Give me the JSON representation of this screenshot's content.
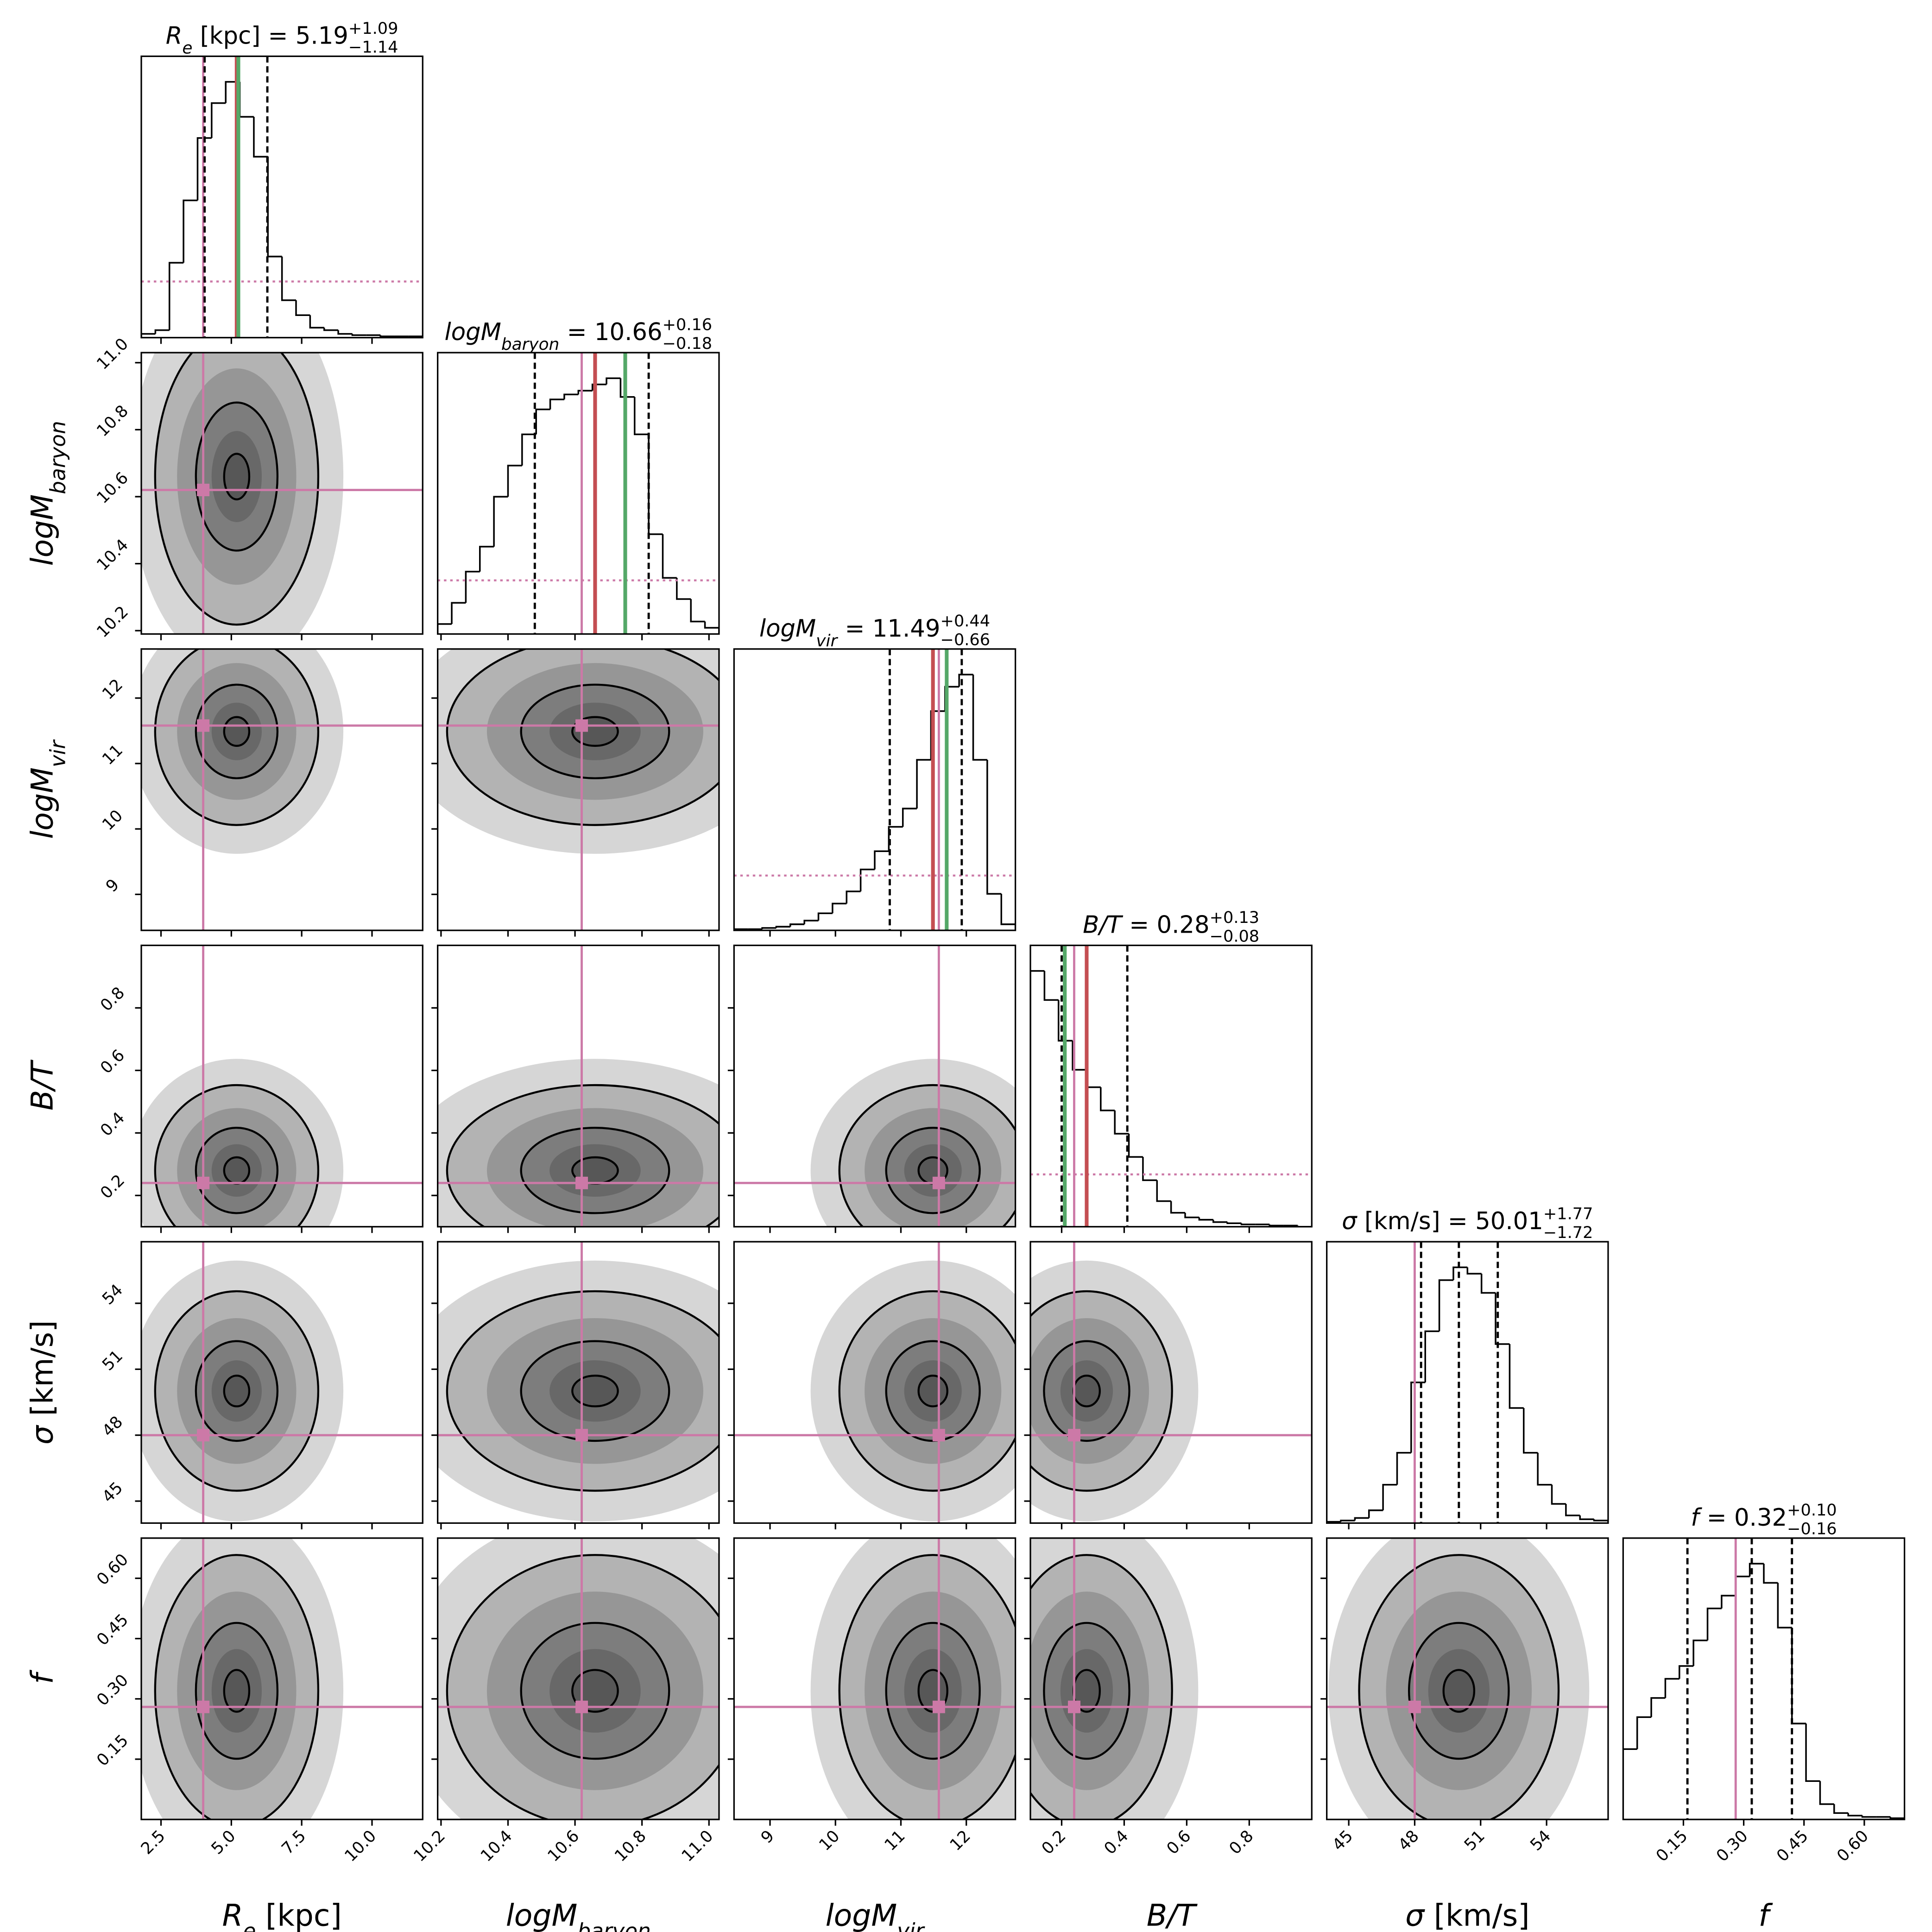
{
  "chart_data": {
    "type": "corner",
    "title_sep": " = ",
    "truth_color": "#cc79a7",
    "best_color": "#55a868",
    "median_color": "#c44e52",
    "params": [
      {
        "label": {
          "main": "R",
          "sub": "e",
          "unit": " [kpc]"
        },
        "median": 5.19,
        "err_plus": {
          "value": 1.09,
          "label": "+1.09"
        },
        "err_minus": {
          "value": 1.14,
          "label": "−1.14"
        },
        "truth": 4.0,
        "best": 5.25,
        "median_line": true,
        "lim": [
          1.8,
          11.8
        ],
        "ticks": [
          2.5,
          {
            "value": 5,
            "label": "5.0"
          },
          7.5,
          {
            "value": 10,
            "label": "10.0"
          }
        ],
        "bins": [
          1.8,
          2.3,
          2.8,
          3.3,
          3.8,
          4.3,
          4.8,
          5.3,
          5.8,
          6.3,
          6.8,
          7.3,
          7.8,
          8.3,
          8.8,
          9.3,
          9.8,
          10.3,
          10.8,
          11.3,
          11.8
        ],
        "counts": [
          3,
          6,
          60,
          110,
          160,
          188,
          205,
          177,
          145,
          65,
          30,
          18,
          8,
          6,
          3,
          2,
          2,
          1,
          1,
          1
        ],
        "prior": 45
      },
      {
        "label": {
          "main": "logM",
          "sub": "baryon"
        },
        "median": 10.66,
        "err_plus": {
          "value": 0.16,
          "label": "+0.16"
        },
        "err_minus": {
          "value": 0.18,
          "label": "−0.18"
        },
        "truth": 10.62,
        "best": 10.75,
        "median_line": true,
        "lim": [
          10.19,
          11.03
        ],
        "ticks": [
          10.2,
          10.4,
          10.6,
          10.8,
          {
            "value": 11,
            "label": "11.0"
          }
        ],
        "bins": [
          10.19,
          10.232,
          10.274,
          10.316,
          10.358,
          10.4,
          10.442,
          10.484,
          10.526,
          10.568,
          10.61,
          10.652,
          10.694,
          10.736,
          10.778,
          10.82,
          10.862,
          10.904,
          10.946,
          10.988,
          11.03
        ],
        "counts": [
          8,
          25,
          50,
          70,
          110,
          135,
          160,
          180,
          188,
          192,
          195,
          200,
          205,
          190,
          160,
          80,
          45,
          28,
          10,
          5
        ],
        "prior": 43
      },
      {
        "label": {
          "main": "logM",
          "sub": "vir"
        },
        "median": 11.49,
        "err_plus": {
          "value": 0.44,
          "label": "+0.44"
        },
        "err_minus": {
          "value": 0.66,
          "label": "−0.66"
        },
        "truth": 11.58,
        "best": 11.7,
        "median_line": true,
        "lim": [
          8.45,
          12.75
        ],
        "ticks": [
          9,
          10,
          11,
          12
        ],
        "bins": [
          8.45,
          8.665,
          8.88,
          9.095,
          9.31,
          9.525,
          9.74,
          9.955,
          10.17,
          10.385,
          10.6,
          10.815,
          11.03,
          11.245,
          11.46,
          11.675,
          11.89,
          12.105,
          12.32,
          12.535,
          12.75
        ],
        "counts": [
          1,
          1,
          2,
          3,
          5,
          8,
          14,
          22,
          32,
          50,
          65,
          85,
          100,
          140,
          180,
          200,
          210,
          140,
          30,
          5
        ],
        "prior": 45
      },
      {
        "label": {
          "main": "B/T"
        },
        "median": 0.28,
        "err_plus": {
          "value": 0.13,
          "label": "+0.13"
        },
        "err_minus": {
          "value": 0.08,
          "label": "−0.08"
        },
        "truth": 0.24,
        "best": 0.21,
        "median_line": true,
        "lim": [
          0.1,
          1.0
        ],
        "ticks": [
          0.2,
          0.4,
          0.6,
          0.8
        ],
        "bins": [
          0.1,
          0.145,
          0.19,
          0.235,
          0.28,
          0.325,
          0.37,
          0.415,
          0.46,
          0.505,
          0.55,
          0.595,
          0.64,
          0.685,
          0.73,
          0.775,
          0.82,
          0.865,
          0.91,
          0.955,
          1.0
        ],
        "counts": [
          220,
          195,
          160,
          135,
          120,
          100,
          80,
          60,
          40,
          22,
          12,
          8,
          6,
          4,
          3,
          2,
          2,
          1,
          1,
          0
        ],
        "prior": 45
      },
      {
        "label": {
          "main": "σ",
          "unit": " [km/s]"
        },
        "median": 50.01,
        "err_plus": {
          "value": 1.77,
          "label": "+1.77"
        },
        "err_minus": {
          "value": 1.72,
          "label": "−1.72"
        },
        "truth": 48,
        "median_line": false,
        "lim": [
          44,
          56.8
        ],
        "ticks": [
          45,
          48,
          51,
          54
        ],
        "bins": [
          44,
          44.64,
          45.28,
          45.92,
          46.56,
          47.2,
          47.84,
          48.48,
          49.12,
          49.76,
          50.4,
          51.04,
          51.68,
          52.32,
          52.96,
          53.6,
          54.24,
          54.88,
          55.52,
          56.16,
          56.8
        ],
        "counts": [
          1,
          2,
          4,
          10,
          30,
          55,
          110,
          150,
          190,
          200,
          195,
          180,
          140,
          90,
          55,
          30,
          15,
          6,
          3,
          2
        ]
      },
      {
        "label": {
          "main": "f"
        },
        "median": 0.32,
        "err_plus": {
          "value": 0.1,
          "label": "+0.10"
        },
        "err_minus": {
          "value": 0.16,
          "label": "−0.16"
        },
        "truth": 0.28,
        "median_line": false,
        "lim": [
          0,
          0.7
        ],
        "ticks": [
          0.15,
          {
            "value": 0.3,
            "label": "0.30"
          },
          0.45,
          {
            "value": 0.6,
            "label": "0.60"
          }
        ],
        "bins": [
          0,
          0.035,
          0.07,
          0.105,
          0.14,
          0.175,
          0.21,
          0.245,
          0.28,
          0.315,
          0.35,
          0.385,
          0.42,
          0.455,
          0.49,
          0.525,
          0.56,
          0.595,
          0.63,
          0.665,
          0.7
        ],
        "counts": [
          55,
          80,
          95,
          110,
          120,
          140,
          165,
          175,
          190,
          200,
          185,
          150,
          75,
          30,
          12,
          5,
          3,
          2,
          2,
          1
        ]
      }
    ]
  }
}
